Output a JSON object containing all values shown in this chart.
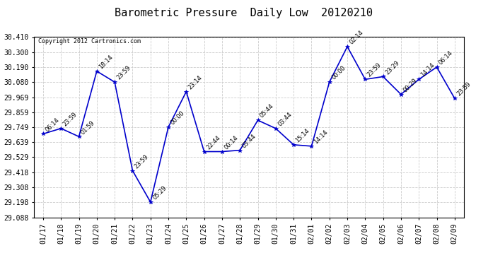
{
  "title": "Barometric Pressure  Daily Low  20120210",
  "copyright": "Copyright 2012 Cartronics.com",
  "background_color": "#ffffff",
  "plot_bg_color": "#ffffff",
  "line_color": "#0000cc",
  "marker_color": "#0000cc",
  "text_color": "#000000",
  "x_labels": [
    "01/17",
    "01/18",
    "01/19",
    "01/20",
    "01/21",
    "01/22",
    "01/23",
    "01/24",
    "01/25",
    "01/26",
    "01/27",
    "01/28",
    "01/29",
    "01/30",
    "01/31",
    "02/01",
    "02/02",
    "02/03",
    "02/04",
    "02/05",
    "02/06",
    "02/07",
    "02/08",
    "02/09"
  ],
  "points": [
    [
      0,
      29.7,
      "06:14"
    ],
    [
      1,
      29.74,
      "23:59"
    ],
    [
      2,
      29.68,
      "01:59"
    ],
    [
      3,
      30.16,
      "18:14"
    ],
    [
      4,
      30.08,
      "23:59"
    ],
    [
      5,
      29.43,
      "23:59"
    ],
    [
      6,
      29.2,
      "05:29"
    ],
    [
      7,
      29.75,
      "00:00"
    ],
    [
      8,
      30.01,
      "23:14"
    ],
    [
      9,
      29.57,
      "22:44"
    ],
    [
      10,
      29.57,
      "00:14"
    ],
    [
      11,
      29.58,
      "03:44"
    ],
    [
      12,
      29.8,
      "05:44"
    ],
    [
      13,
      29.74,
      "03:44"
    ],
    [
      14,
      29.62,
      "15:14"
    ],
    [
      15,
      29.61,
      "14:14"
    ],
    [
      16,
      30.08,
      "00:00"
    ],
    [
      17,
      30.34,
      "02:14"
    ],
    [
      18,
      30.1,
      "23:59"
    ],
    [
      19,
      30.12,
      "23:29"
    ],
    [
      20,
      29.99,
      "00:29"
    ],
    [
      21,
      30.1,
      "14:14"
    ],
    [
      22,
      30.19,
      "06:14"
    ],
    [
      23,
      29.96,
      "23:59"
    ]
  ],
  "ylim_min": 29.088,
  "ylim_max": 30.41,
  "yticks": [
    29.088,
    29.198,
    29.308,
    29.418,
    29.529,
    29.639,
    29.749,
    29.859,
    29.969,
    30.08,
    30.19,
    30.3,
    30.41
  ],
  "grid_color": "#cccccc",
  "title_fontsize": 11,
  "tick_fontsize": 7,
  "annotation_fontsize": 6,
  "copyright_fontsize": 6
}
